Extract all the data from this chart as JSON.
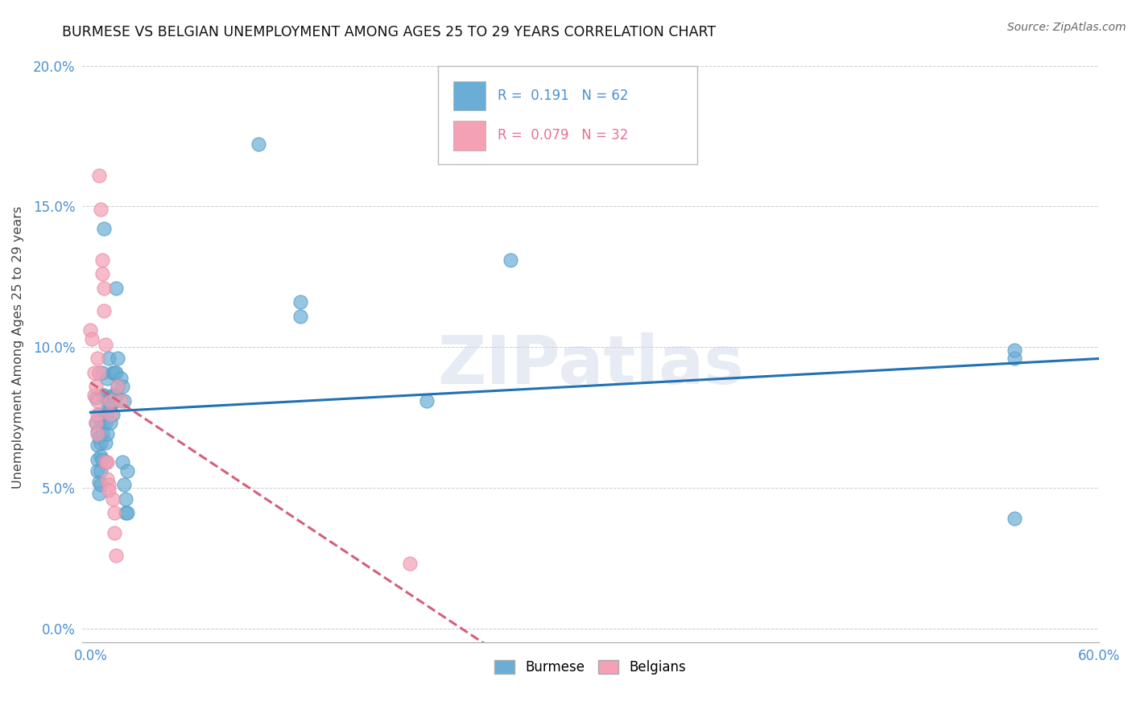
{
  "title": "BURMESE VS BELGIAN UNEMPLOYMENT AMONG AGES 25 TO 29 YEARS CORRELATION CHART",
  "source": "Source: ZipAtlas.com",
  "ylabel": "Unemployment Among Ages 25 to 29 years",
  "xlim": [
    -0.005,
    0.6
  ],
  "ylim": [
    -0.005,
    0.205
  ],
  "xtick_vals": [
    0.0,
    0.1,
    0.2,
    0.3,
    0.4,
    0.5,
    0.6
  ],
  "ytick_vals": [
    0.0,
    0.05,
    0.1,
    0.15,
    0.2
  ],
  "xtick_labels_show": [
    "0.0%",
    "",
    "",
    "",
    "",
    "",
    "60.0%"
  ],
  "ytick_labels": [
    "0.0%",
    "5.0%",
    "10.0%",
    "15.0%",
    "20.0%"
  ],
  "burmese_color": "#6aaed6",
  "burmese_edge": "#5a9ec6",
  "belgian_color": "#f4a0b5",
  "belgian_edge": "#e490a5",
  "burmese_line_color": "#2171b5",
  "belgian_line_color": "#d4607a",
  "burmese_R": 0.191,
  "burmese_N": 62,
  "belgian_R": 0.079,
  "belgian_N": 32,
  "watermark": "ZIPatlas",
  "tick_color": "#4a90d0",
  "burmese_points": [
    [
      0.003,
      0.082
    ],
    [
      0.003,
      0.073
    ],
    [
      0.004,
      0.07
    ],
    [
      0.004,
      0.065
    ],
    [
      0.004,
      0.06
    ],
    [
      0.004,
      0.056
    ],
    [
      0.005,
      0.052
    ],
    [
      0.005,
      0.048
    ],
    [
      0.005,
      0.076
    ],
    [
      0.005,
      0.068
    ],
    [
      0.006,
      0.074
    ],
    [
      0.006,
      0.066
    ],
    [
      0.006,
      0.061
    ],
    [
      0.006,
      0.056
    ],
    [
      0.006,
      0.051
    ],
    [
      0.007,
      0.091
    ],
    [
      0.007,
      0.083
    ],
    [
      0.007,
      0.073
    ],
    [
      0.007,
      0.069
    ],
    [
      0.007,
      0.06
    ],
    [
      0.008,
      0.142
    ],
    [
      0.008,
      0.083
    ],
    [
      0.009,
      0.073
    ],
    [
      0.009,
      0.066
    ],
    [
      0.009,
      0.059
    ],
    [
      0.01,
      0.089
    ],
    [
      0.01,
      0.081
    ],
    [
      0.01,
      0.076
    ],
    [
      0.01,
      0.069
    ],
    [
      0.011,
      0.079
    ],
    [
      0.011,
      0.096
    ],
    [
      0.011,
      0.081
    ],
    [
      0.012,
      0.079
    ],
    [
      0.012,
      0.073
    ],
    [
      0.013,
      0.091
    ],
    [
      0.013,
      0.083
    ],
    [
      0.013,
      0.076
    ],
    [
      0.014,
      0.081
    ],
    [
      0.014,
      0.091
    ],
    [
      0.014,
      0.083
    ],
    [
      0.015,
      0.121
    ],
    [
      0.015,
      0.091
    ],
    [
      0.015,
      0.083
    ],
    [
      0.016,
      0.096
    ],
    [
      0.016,
      0.086
    ],
    [
      0.018,
      0.089
    ],
    [
      0.019,
      0.059
    ],
    [
      0.019,
      0.086
    ],
    [
      0.02,
      0.081
    ],
    [
      0.02,
      0.051
    ],
    [
      0.021,
      0.046
    ],
    [
      0.021,
      0.041
    ],
    [
      0.022,
      0.056
    ],
    [
      0.022,
      0.041
    ],
    [
      0.1,
      0.172
    ],
    [
      0.125,
      0.116
    ],
    [
      0.125,
      0.111
    ],
    [
      0.2,
      0.081
    ],
    [
      0.25,
      0.131
    ],
    [
      0.55,
      0.039
    ],
    [
      0.55,
      0.096
    ],
    [
      0.55,
      0.099
    ]
  ],
  "belgian_points": [
    [
      0.0,
      0.106
    ],
    [
      0.001,
      0.103
    ],
    [
      0.002,
      0.091
    ],
    [
      0.002,
      0.083
    ],
    [
      0.003,
      0.073
    ],
    [
      0.003,
      0.086
    ],
    [
      0.004,
      0.096
    ],
    [
      0.004,
      0.081
    ],
    [
      0.004,
      0.076
    ],
    [
      0.004,
      0.069
    ],
    [
      0.005,
      0.091
    ],
    [
      0.005,
      0.161
    ],
    [
      0.006,
      0.149
    ],
    [
      0.007,
      0.131
    ],
    [
      0.007,
      0.126
    ],
    [
      0.008,
      0.121
    ],
    [
      0.008,
      0.113
    ],
    [
      0.009,
      0.101
    ],
    [
      0.009,
      0.059
    ],
    [
      0.01,
      0.053
    ],
    [
      0.01,
      0.059
    ],
    [
      0.011,
      0.051
    ],
    [
      0.011,
      0.049
    ],
    [
      0.012,
      0.081
    ],
    [
      0.012,
      0.076
    ],
    [
      0.013,
      0.046
    ],
    [
      0.014,
      0.041
    ],
    [
      0.014,
      0.034
    ],
    [
      0.015,
      0.026
    ],
    [
      0.016,
      0.086
    ],
    [
      0.018,
      0.081
    ],
    [
      0.19,
      0.023
    ]
  ]
}
